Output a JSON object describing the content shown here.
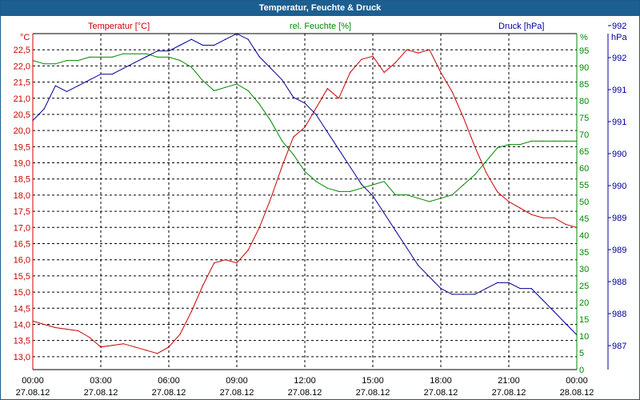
{
  "window": {
    "title": "Temperatur, Feuchte & Druck"
  },
  "colors": {
    "temperature": "#cc0000",
    "humidity": "#008800",
    "pressure": "#000099",
    "grid": "#000000",
    "title_bg": "#1c5f91"
  },
  "chart_data": {
    "type": "line",
    "title": "Temperatur, Feuchte & Druck",
    "x_tick_labels": [
      {
        "time": "00:00",
        "date": "27.08.12"
      },
      {
        "time": "03:00",
        "date": "27.08.12"
      },
      {
        "time": "06:00",
        "date": "27.08.12"
      },
      {
        "time": "09:00",
        "date": "27.08.12"
      },
      {
        "time": "12:00",
        "date": "27.08.12"
      },
      {
        "time": "15:00",
        "date": "27.08.12"
      },
      {
        "time": "18:00",
        "date": "27.08.12"
      },
      {
        "time": "21:00",
        "date": "27.08.12"
      },
      {
        "time": "00:00",
        "date": "28.08.12"
      }
    ],
    "x_range_hours": [
      0,
      24
    ],
    "axes": {
      "temperature": {
        "unit": "°C",
        "legend": "Temperatur [°C]",
        "range": [
          12.6,
          23.0
        ],
        "ticks": [
          "13,0",
          "13,5",
          "14,0",
          "14,5",
          "15,0",
          "15,5",
          "16,0",
          "16,5",
          "17,0",
          "17,5",
          "18,0",
          "18,5",
          "19,0",
          "19,5",
          "20,0",
          "20,5",
          "21,0",
          "21,5",
          "22,0",
          "22,5"
        ]
      },
      "humidity": {
        "unit": "%",
        "legend": "rel. Feuchte [%]",
        "range": [
          0,
          100
        ],
        "ticks": [
          "0",
          "5",
          "10",
          "15",
          "20",
          "25",
          "30",
          "35",
          "40",
          "45",
          "50",
          "55",
          "60",
          "65",
          "70",
          "75",
          "80",
          "85",
          "90",
          "95"
        ]
      },
      "pressure": {
        "unit": "hPa",
        "legend": "Druck [hPa]",
        "range": [
          986.6,
          992.4
        ],
        "ticks": [
          "987",
          "988",
          "988",
          "989",
          "989",
          "990",
          "990",
          "991",
          "991",
          "992",
          "992"
        ]
      }
    },
    "series": [
      {
        "name": "Temperatur",
        "axis": "temperature",
        "x": [
          0,
          0.5,
          1,
          1.5,
          2,
          2.5,
          3,
          3.5,
          4,
          4.5,
          5,
          5.5,
          6,
          6.5,
          7,
          7.5,
          8,
          8.5,
          9,
          9.5,
          10,
          10.5,
          11,
          11.5,
          12,
          12.5,
          13,
          13.5,
          14,
          14.5,
          15,
          15.5,
          16,
          16.5,
          17,
          17.5,
          18,
          18.5,
          19,
          19.5,
          20,
          20.5,
          21,
          21.5,
          22,
          22.5,
          23,
          23.5,
          24
        ],
        "values": [
          14.1,
          14.0,
          13.9,
          13.85,
          13.8,
          13.6,
          13.3,
          13.35,
          13.4,
          13.3,
          13.2,
          13.1,
          13.3,
          13.7,
          14.4,
          15.2,
          15.9,
          16.0,
          15.9,
          16.3,
          17.0,
          17.9,
          18.9,
          19.8,
          20.1,
          20.7,
          21.3,
          21.0,
          21.8,
          22.2,
          22.3,
          21.8,
          22.1,
          22.5,
          22.4,
          22.5,
          21.8,
          21.2,
          20.4,
          19.5,
          18.7,
          18.1,
          17.8,
          17.6,
          17.4,
          17.3,
          17.3,
          17.1,
          17.0
        ]
      },
      {
        "name": "rel. Feuchte",
        "axis": "humidity",
        "x": [
          0,
          0.5,
          1,
          1.5,
          2,
          2.5,
          3,
          3.5,
          4,
          4.5,
          5,
          5.5,
          6,
          6.5,
          7,
          7.5,
          8,
          8.5,
          9,
          9.5,
          10,
          10.5,
          11,
          11.5,
          12,
          12.5,
          13,
          13.5,
          14,
          14.5,
          15,
          15.5,
          16,
          16.5,
          17,
          17.5,
          18,
          18.5,
          19,
          19.5,
          20,
          20.5,
          21,
          21.5,
          22,
          22.5,
          23,
          23.5,
          24
        ],
        "values": [
          92,
          91,
          91,
          92,
          92,
          93,
          93,
          93,
          94,
          94,
          94,
          93,
          93,
          92,
          90,
          86,
          83,
          84,
          85,
          83,
          79,
          74,
          68,
          64,
          59,
          56,
          54,
          53,
          53,
          54,
          55,
          56,
          52,
          52,
          51,
          50,
          51,
          52,
          55,
          58,
          62,
          66,
          67,
          67,
          68,
          68,
          68,
          68,
          68
        ]
      },
      {
        "name": "Druck",
        "axis": "pressure",
        "x": [
          0,
          0.5,
          1,
          1.5,
          2,
          2.5,
          3,
          3.5,
          4,
          4.5,
          5,
          5.5,
          6,
          6.5,
          7,
          7.5,
          8,
          8.5,
          9,
          9.5,
          10,
          10.5,
          11,
          11.5,
          12,
          12.5,
          13,
          13.5,
          14,
          14.5,
          15,
          15.5,
          16,
          16.5,
          17,
          17.5,
          18,
          18.5,
          19,
          19.5,
          20,
          20.5,
          21,
          21.5,
          22,
          22.5,
          23,
          23.5,
          24
        ],
        "values": [
          990.9,
          991.1,
          991.5,
          991.4,
          991.5,
          991.6,
          991.7,
          991.7,
          991.8,
          991.9,
          992.0,
          992.1,
          992.1,
          992.2,
          992.3,
          992.2,
          992.2,
          992.3,
          992.4,
          992.3,
          992.0,
          991.8,
          991.6,
          991.3,
          991.2,
          991.0,
          990.7,
          990.4,
          990.1,
          989.8,
          989.6,
          989.3,
          989.0,
          988.7,
          988.4,
          988.2,
          988.0,
          987.9,
          987.9,
          987.9,
          988.0,
          988.1,
          988.1,
          988.0,
          988.0,
          987.8,
          987.6,
          987.4,
          987.2
        ]
      }
    ]
  }
}
